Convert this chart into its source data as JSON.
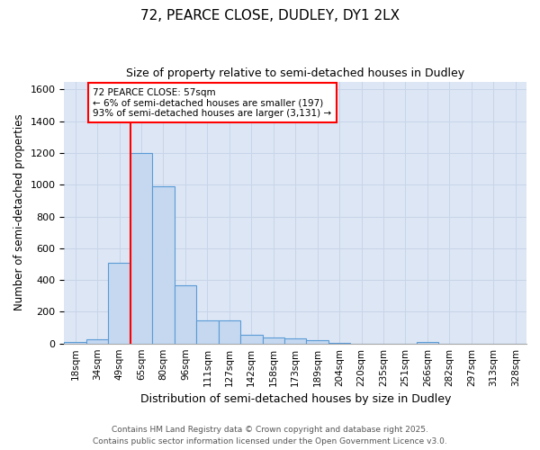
{
  "title": "72, PEARCE CLOSE, DUDLEY, DY1 2LX",
  "subtitle": "Size of property relative to semi-detached houses in Dudley",
  "xlabel": "Distribution of semi-detached houses by size in Dudley",
  "ylabel": "Number of semi-detached properties",
  "bin_labels": [
    "18sqm",
    "34sqm",
    "49sqm",
    "65sqm",
    "80sqm",
    "96sqm",
    "111sqm",
    "127sqm",
    "142sqm",
    "158sqm",
    "173sqm",
    "189sqm",
    "204sqm",
    "220sqm",
    "235sqm",
    "251sqm",
    "266sqm",
    "282sqm",
    "297sqm",
    "313sqm",
    "328sqm"
  ],
  "bar_values": [
    10,
    25,
    510,
    1200,
    990,
    365,
    145,
    145,
    55,
    40,
    30,
    20,
    5,
    0,
    0,
    0,
    10,
    0,
    0,
    0,
    0
  ],
  "bar_color": "#c5d8f0",
  "bar_edge_color": "#5b9bd5",
  "grid_color": "#c8d4e8",
  "background_color": "#dce6f5",
  "vline_x": 2.5,
  "ylim": [
    0,
    1650
  ],
  "yticks": [
    0,
    200,
    400,
    600,
    800,
    1000,
    1200,
    1400,
    1600
  ],
  "annotation_text": "72 PEARCE CLOSE: 57sqm\n← 6% of semi-detached houses are smaller (197)\n93% of semi-detached houses are larger (3,131) →",
  "footnote1": "Contains HM Land Registry data © Crown copyright and database right 2025.",
  "footnote2": "Contains public sector information licensed under the Open Government Licence v3.0."
}
